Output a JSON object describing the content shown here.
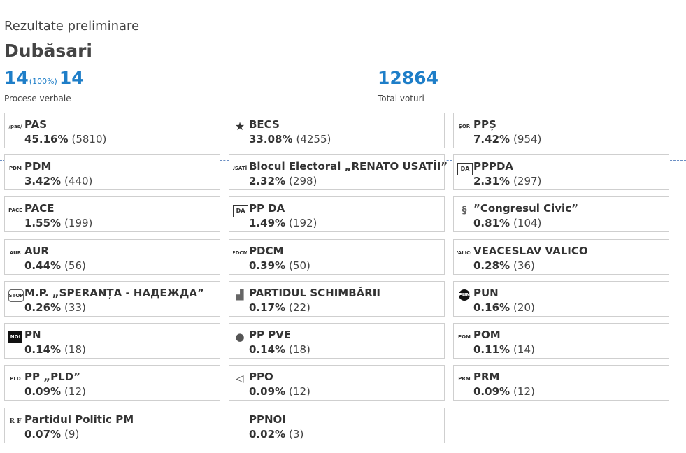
{
  "header": {
    "subtitle": "Rezultate preliminare",
    "title": "Dubăsari"
  },
  "stats": {
    "processed": "14",
    "processed_pct": "(100%)",
    "total_processes": "14",
    "processes_label": "Procese verbale",
    "total_votes": "12864",
    "votes_label": "Total voturi"
  },
  "parties": [
    {
      "name": "PAS",
      "pct": "45.16%",
      "votes": "(5810)",
      "icon": "pas-logo-icon",
      "logo": "/pas/"
    },
    {
      "name": "BECS",
      "pct": "33.08%",
      "votes": "(4255)",
      "icon": "star-icon",
      "logo": "★"
    },
    {
      "name": "PPȘ",
      "pct": "7.42%",
      "votes": "(954)",
      "icon": "pps-logo-icon",
      "logo": "ȘOR"
    },
    {
      "name": "PDM",
      "pct": "3.42%",
      "votes": "(440)",
      "icon": "pdm-logo-icon",
      "logo": "PDM"
    },
    {
      "name": "Blocul Electoral „RENATO USATÎI”",
      "pct": "2.32%",
      "votes": "(298)",
      "icon": "renato-usatii-logo-icon",
      "logo": "USATÎI"
    },
    {
      "name": "PPPDA",
      "pct": "2.31%",
      "votes": "(297)",
      "icon": "da-logo-icon",
      "logo": "DA"
    },
    {
      "name": "PACE",
      "pct": "1.55%",
      "votes": "(199)",
      "icon": "pace-logo-icon",
      "logo": "PACE"
    },
    {
      "name": "PP DA",
      "pct": "1.49%",
      "votes": "(192)",
      "icon": "ppda-logo-icon",
      "logo": "DA"
    },
    {
      "name": "”Congresul Civic”",
      "pct": "0.81%",
      "votes": "(104)",
      "icon": "congresul-civic-logo-icon",
      "logo": "§"
    },
    {
      "name": "AUR",
      "pct": "0.44%",
      "votes": "(56)",
      "icon": "aur-logo-icon",
      "logo": "AUR"
    },
    {
      "name": "PDCM",
      "pct": "0.39%",
      "votes": "(50)",
      "icon": "pdcm-logo-icon",
      "logo": "PDCM"
    },
    {
      "name": "VEACESLAV VALICO",
      "pct": "0.28%",
      "votes": "(36)",
      "icon": "valico-logo-icon",
      "logo": "VALICO"
    },
    {
      "name": "M.P. „SPERANȚA - НАДЕЖДА”",
      "pct": "0.26%",
      "votes": "(33)",
      "icon": "stop-logo-icon",
      "logo": "STOP"
    },
    {
      "name": "PARTIDUL SCHIMBĂRII",
      "pct": "0.17%",
      "votes": "(22)",
      "icon": "schimbarii-logo-icon",
      "logo": "▟"
    },
    {
      "name": "PUN",
      "pct": "0.16%",
      "votes": "(20)",
      "icon": "pun-logo-icon",
      "logo": "PUN"
    },
    {
      "name": "PN",
      "pct": "0.14%",
      "votes": "(18)",
      "icon": "noi-logo-icon",
      "logo": "NOI"
    },
    {
      "name": "PP PVE",
      "pct": "0.14%",
      "votes": "(18)",
      "icon": "pve-logo-icon",
      "logo": "●"
    },
    {
      "name": "POM",
      "pct": "0.11%",
      "votes": "(14)",
      "icon": "pom-logo-icon",
      "logo": "POM"
    },
    {
      "name": "PP „PLD”",
      "pct": "0.09%",
      "votes": "(12)",
      "icon": "pld-logo-icon",
      "logo": "PLD"
    },
    {
      "name": "PPO",
      "pct": "0.09%",
      "votes": "(12)",
      "icon": "ppo-logo-icon",
      "logo": "◁"
    },
    {
      "name": "PRM",
      "pct": "0.09%",
      "votes": "(12)",
      "icon": "prm-logo-icon",
      "logo": "PRM"
    },
    {
      "name": "Partidul Politic PM",
      "pct": "0.07%",
      "votes": "(9)",
      "icon": "rf-logo-icon",
      "logo": "R F"
    },
    {
      "name": "PPNOI",
      "pct": "0.02%",
      "votes": "(3)",
      "icon": "",
      "logo": ""
    }
  ]
}
